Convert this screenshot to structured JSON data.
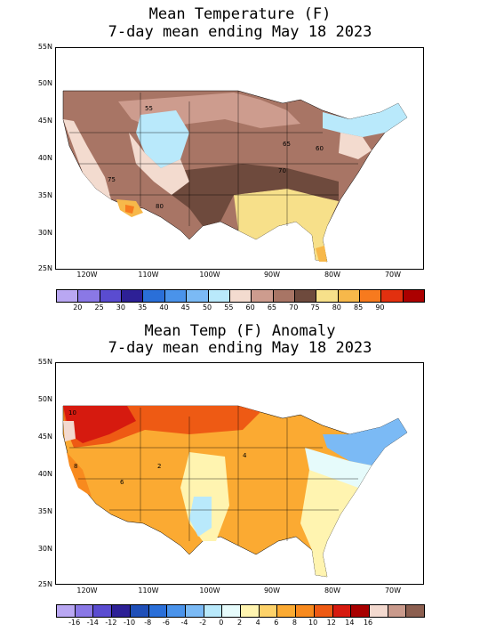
{
  "top": {
    "title_line1": "Mean Temperature (F)",
    "title_line2": "7-day mean ending May 18 2023",
    "lat_labels": [
      "55N",
      "50N",
      "45N",
      "40N",
      "35N",
      "30N",
      "25N"
    ],
    "lon_labels": [
      "120W",
      "110W",
      "100W",
      "90W",
      "80W",
      "70W"
    ],
    "contour_labels": [
      "55",
      "60",
      "65",
      "70",
      "75",
      "80"
    ],
    "colorbar": {
      "colors": [
        "#b9a7f2",
        "#8a78e6",
        "#5a4cd0",
        "#2d2096",
        "#2a6fd8",
        "#4a93ea",
        "#7bbaf5",
        "#b9e9fb",
        "#f3dbcf",
        "#cd9c8e",
        "#a87565",
        "#6e4a3d",
        "#f7e08a",
        "#f7b84a",
        "#f77a1e",
        "#e2300f",
        "#ab0000"
      ],
      "labels": [
        "20",
        "25",
        "30",
        "35",
        "40",
        "45",
        "50",
        "55",
        "60",
        "65",
        "70",
        "75",
        "80",
        "85",
        "90"
      ]
    }
  },
  "bottom": {
    "title_line1": "Mean Temp (F) Anomaly",
    "title_line2": "7-day mean ending May 18 2023",
    "lat_labels": [
      "55N",
      "50N",
      "45N",
      "40N",
      "35N",
      "30N",
      "25N"
    ],
    "lon_labels": [
      "120W",
      "110W",
      "100W",
      "90W",
      "80W",
      "70W"
    ],
    "contour_labels": [
      "2",
      "4",
      "6",
      "8",
      "10"
    ],
    "colorbar": {
      "colors": [
        "#b9a7f2",
        "#8a78e6",
        "#5a4cd0",
        "#2d2096",
        "#1f4fb8",
        "#2a6fd8",
        "#4a93ea",
        "#7bbaf5",
        "#b9e9fb",
        "#e6fbfb",
        "#fff4b0",
        "#fdd26a",
        "#fbaa32",
        "#f88a1e",
        "#ee5a14",
        "#d61a0f",
        "#a80000",
        "#f3d9cf",
        "#c99a8c",
        "#8c5f50"
      ],
      "labels": [
        "-16",
        "-14",
        "-12",
        "-10",
        "-8",
        "-6",
        "-4",
        "-2",
        "0",
        "2",
        "4",
        "6",
        "8",
        "10",
        "12",
        "14",
        "16"
      ]
    }
  }
}
